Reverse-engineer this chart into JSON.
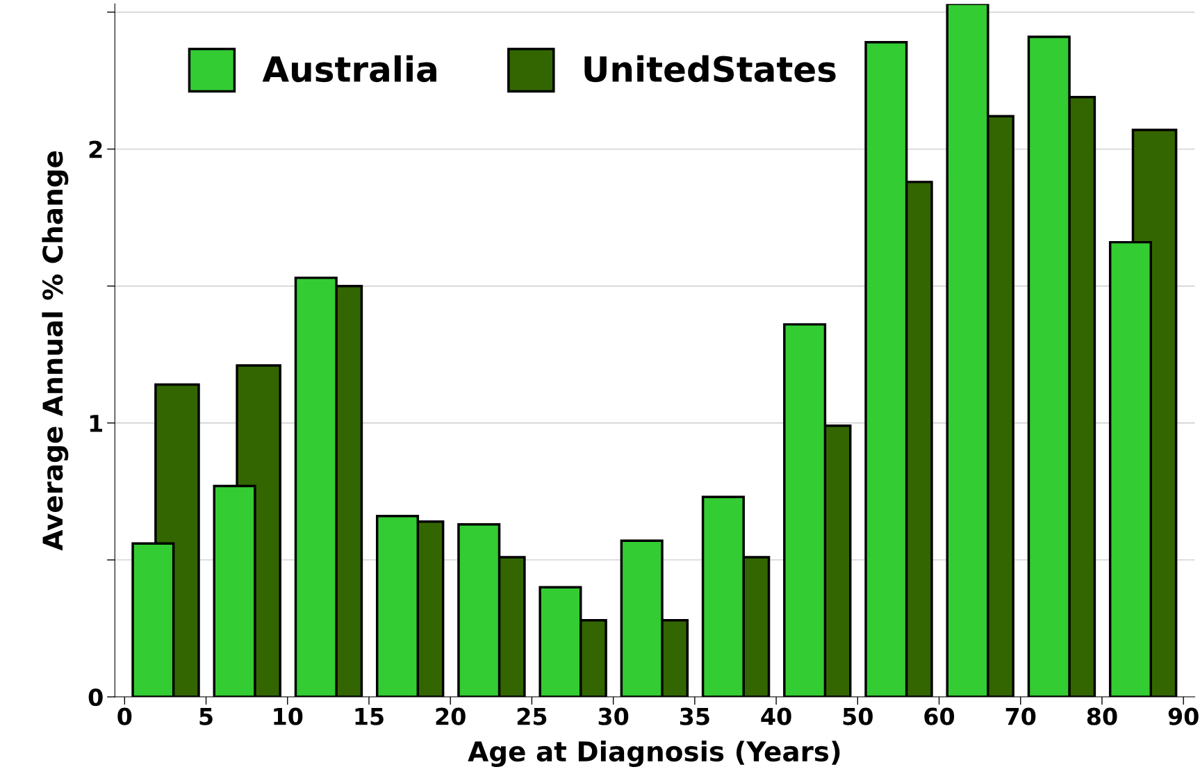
{
  "chart_data": {
    "type": "bar",
    "xlabel": "Age at Diagnosis (Years)",
    "ylabel": "Average Annual % Change",
    "categories": [
      null,
      null,
      null,
      null,
      null,
      null,
      null,
      null,
      null,
      null,
      null,
      null,
      null
    ],
    "annotations": [
      "0",
      "5",
      "10",
      "15",
      "20",
      "25",
      "30",
      "35",
      "40",
      "50",
      "60",
      "70",
      "80",
      "90"
    ],
    "ylim": [
      0,
      2.53
    ],
    "yticks": [
      0,
      {
        "value": 0.5,
        "label": null
      },
      1,
      {
        "value": 1.5,
        "label": null
      },
      2,
      {
        "value": 2.5,
        "label": null
      }
    ],
    "grid": "y",
    "legend": "top left",
    "series": [
      {
        "name": "Australia",
        "color": "#33cc33",
        "values": [
          0.56,
          0.77,
          1.53,
          0.66,
          0.63,
          0.4,
          0.57,
          0.73,
          1.36,
          2.39,
          2.53,
          2.41,
          1.66
        ]
      },
      {
        "name": "UnitedStates",
        "color": "#336600",
        "values": [
          1.14,
          1.21,
          1.5,
          0.64,
          0.51,
          0.28,
          0.28,
          0.51,
          0.99,
          1.88,
          2.12,
          2.19,
          2.07
        ]
      }
    ]
  }
}
